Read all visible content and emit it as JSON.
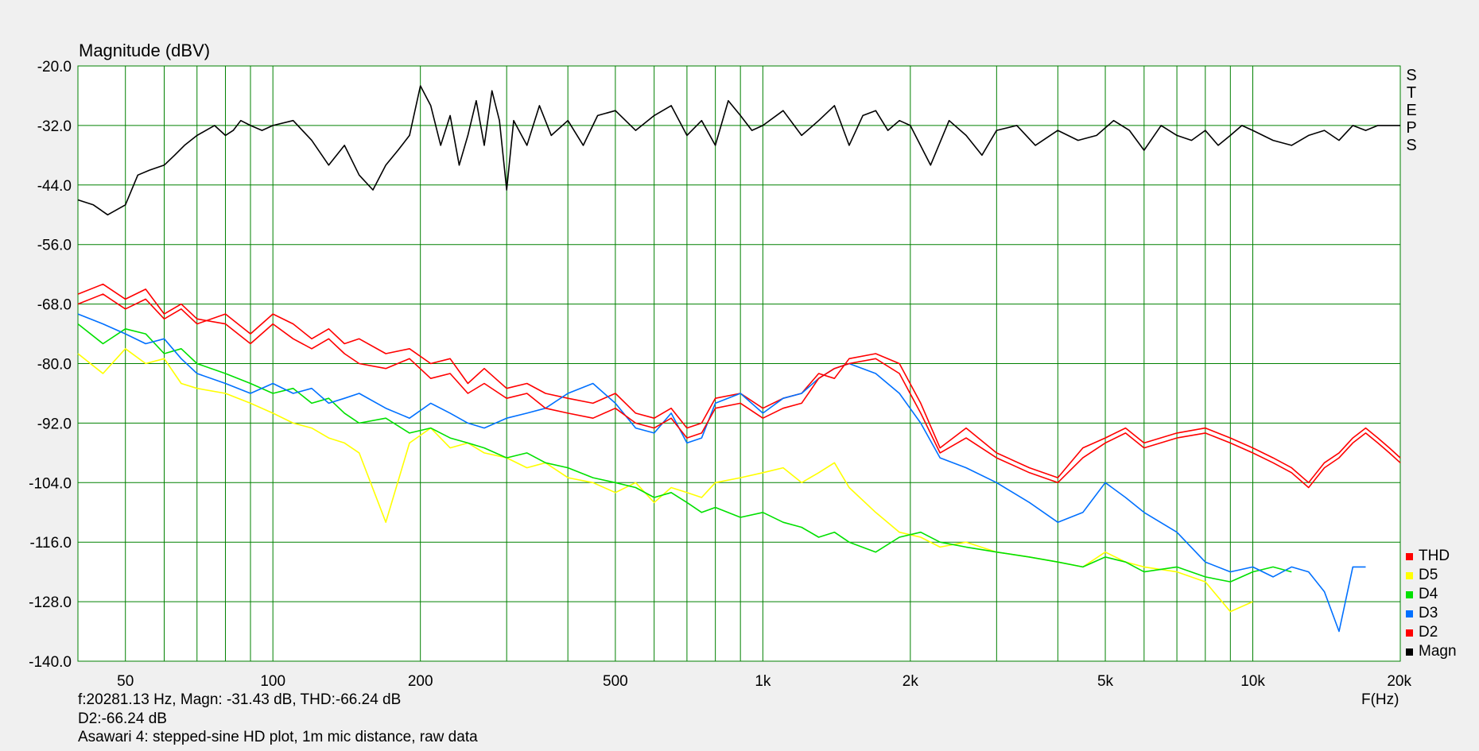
{
  "chart_data": {
    "type": "line",
    "ylabel": "Magnitude (dBV)",
    "xlabel": "F(Hz)",
    "xscale": "log",
    "xlim": [
      40,
      20000
    ],
    "ylim": [
      -140,
      -20
    ],
    "y_ticks": [
      -20.0,
      -32.0,
      -44.0,
      -56.0,
      -68.0,
      -80.0,
      -92.0,
      -104.0,
      -116.0,
      -128.0,
      -140.0
    ],
    "y_tick_labels": [
      "-20.0",
      "-32.0",
      "-44.0",
      "-56.0",
      "-68.0",
      "-80.0",
      "-92.0",
      "-104.0",
      "-116.0",
      "-128.0",
      "-140.0"
    ],
    "x_ticks": [
      50,
      100,
      200,
      500,
      1000,
      2000,
      5000,
      10000,
      20000
    ],
    "x_tick_labels": [
      "50",
      "100",
      "200",
      "500",
      "1k",
      "2k",
      "5k",
      "10k",
      "20k"
    ],
    "grid": true,
    "legend_position": "bottom-right",
    "series": [
      {
        "name": "THD",
        "color": "#ff0000",
        "x": [
          40,
          45,
          50,
          55,
          60,
          65,
          70,
          80,
          90,
          100,
          110,
          120,
          130,
          140,
          150,
          170,
          190,
          210,
          230,
          250,
          270,
          300,
          330,
          360,
          400,
          450,
          500,
          550,
          600,
          650,
          700,
          750,
          800,
          900,
          1000,
          1100,
          1200,
          1300,
          1400,
          1500,
          1700,
          1900,
          2100,
          2300,
          2600,
          3000,
          3500,
          4000,
          4500,
          5000,
          5500,
          6000,
          7000,
          8000,
          9000,
          10000,
          11000,
          12000,
          13000,
          14000,
          15000,
          16000,
          17000,
          18000,
          19000,
          20000
        ],
        "y": [
          -68,
          -66,
          -69,
          -67,
          -71,
          -69,
          -72,
          -70,
          -74,
          -70,
          -72,
          -75,
          -73,
          -76,
          -75,
          -78,
          -77,
          -80,
          -79,
          -84,
          -81,
          -85,
          -84,
          -86,
          -87,
          -88,
          -86,
          -90,
          -91,
          -89,
          -93,
          -92,
          -87,
          -86,
          -89,
          -87,
          -86,
          -82,
          -83,
          -79,
          -78,
          -80,
          -88,
          -97,
          -93,
          -98,
          -101,
          -103,
          -97,
          -95,
          -93,
          -96,
          -94,
          -93,
          -95,
          -97,
          -99,
          -101,
          -104,
          -100,
          -98,
          -95,
          -93,
          -95,
          -97,
          -99
        ]
      },
      {
        "name": "D5",
        "color": "#ffff00",
        "x": [
          40,
          45,
          50,
          55,
          60,
          65,
          70,
          80,
          90,
          100,
          110,
          120,
          130,
          140,
          150,
          170,
          190,
          210,
          230,
          250,
          270,
          300,
          330,
          360,
          400,
          450,
          500,
          550,
          600,
          650,
          700,
          750,
          800,
          900,
          1000,
          1100,
          1200,
          1300,
          1400,
          1500,
          1700,
          1900,
          2100,
          2300,
          2600,
          3000,
          3500,
          4000,
          4500,
          5000,
          5500,
          6000,
          7000,
          8000,
          9000,
          10000
        ],
        "y": [
          -78,
          -82,
          -77,
          -80,
          -79,
          -84,
          -85,
          -86,
          -88,
          -90,
          -92,
          -93,
          -95,
          -96,
          -98,
          -112,
          -96,
          -93,
          -97,
          -96,
          -98,
          -99,
          -101,
          -100,
          -103,
          -104,
          -106,
          -104,
          -108,
          -105,
          -106,
          -107,
          -104,
          -103,
          -102,
          -101,
          -104,
          -102,
          -100,
          -105,
          -110,
          -114,
          -115,
          -117,
          -116,
          -118,
          -119,
          -120,
          -121,
          -118,
          -120,
          -121,
          -122,
          -124,
          -130,
          -128
        ]
      },
      {
        "name": "D4",
        "color": "#00e000",
        "x": [
          40,
          45,
          50,
          55,
          60,
          65,
          70,
          80,
          90,
          100,
          110,
          120,
          130,
          140,
          150,
          170,
          190,
          210,
          230,
          250,
          270,
          300,
          330,
          360,
          400,
          450,
          500,
          550,
          600,
          650,
          700,
          750,
          800,
          900,
          1000,
          1100,
          1200,
          1300,
          1400,
          1500,
          1700,
          1900,
          2100,
          2300,
          2600,
          3000,
          3500,
          4000,
          4500,
          5000,
          5500,
          6000,
          7000,
          8000,
          9000,
          10000,
          11000,
          12000
        ],
        "y": [
          -72,
          -76,
          -73,
          -74,
          -78,
          -77,
          -80,
          -82,
          -84,
          -86,
          -85,
          -88,
          -87,
          -90,
          -92,
          -91,
          -94,
          -93,
          -95,
          -96,
          -97,
          -99,
          -98,
          -100,
          -101,
          -103,
          -104,
          -105,
          -107,
          -106,
          -108,
          -110,
          -109,
          -111,
          -110,
          -112,
          -113,
          -115,
          -114,
          -116,
          -118,
          -115,
          -114,
          -116,
          -117,
          -118,
          -119,
          -120,
          -121,
          -119,
          -120,
          -122,
          -121,
          -123,
          -124,
          -122,
          -121,
          -122
        ]
      },
      {
        "name": "D3",
        "color": "#0070ff",
        "x": [
          40,
          45,
          50,
          55,
          60,
          65,
          70,
          80,
          90,
          100,
          110,
          120,
          130,
          140,
          150,
          170,
          190,
          210,
          230,
          250,
          270,
          300,
          330,
          360,
          400,
          450,
          500,
          550,
          600,
          650,
          700,
          750,
          800,
          900,
          1000,
          1100,
          1200,
          1300,
          1400,
          1500,
          1700,
          1900,
          2100,
          2300,
          2600,
          3000,
          3500,
          4000,
          4500,
          5000,
          5500,
          6000,
          7000,
          8000,
          9000,
          10000,
          11000,
          12000,
          13000,
          14000,
          15000,
          16000,
          17000
        ],
        "y": [
          -70,
          -72,
          -74,
          -76,
          -75,
          -79,
          -82,
          -84,
          -86,
          -84,
          -86,
          -85,
          -88,
          -87,
          -86,
          -89,
          -91,
          -88,
          -90,
          -92,
          -93,
          -91,
          -90,
          -89,
          -86,
          -84,
          -88,
          -93,
          -94,
          -90,
          -96,
          -95,
          -88,
          -86,
          -90,
          -87,
          -86,
          -83,
          -81,
          -80,
          -82,
          -86,
          -92,
          -99,
          -101,
          -104,
          -108,
          -112,
          -110,
          -104,
          -107,
          -110,
          -114,
          -120,
          -122,
          -121,
          -123,
          -121,
          -122,
          -126,
          -134,
          -121,
          -121
        ]
      },
      {
        "name": "D2",
        "color": "#ff0000",
        "x": [
          40,
          45,
          50,
          55,
          60,
          65,
          70,
          80,
          90,
          100,
          110,
          120,
          130,
          140,
          150,
          170,
          190,
          210,
          230,
          250,
          270,
          300,
          330,
          360,
          400,
          450,
          500,
          550,
          600,
          650,
          700,
          750,
          800,
          900,
          1000,
          1100,
          1200,
          1300,
          1400,
          1500,
          1700,
          1900,
          2100,
          2300,
          2600,
          3000,
          3500,
          4000,
          4500,
          5000,
          5500,
          6000,
          7000,
          8000,
          9000,
          10000,
          11000,
          12000,
          13000,
          14000,
          15000,
          16000,
          17000,
          18000,
          19000,
          20000
        ],
        "y": [
          -66,
          -64,
          -67,
          -65,
          -70,
          -68,
          -71,
          -72,
          -76,
          -72,
          -75,
          -77,
          -75,
          -78,
          -80,
          -81,
          -79,
          -83,
          -82,
          -86,
          -84,
          -87,
          -86,
          -89,
          -90,
          -91,
          -89,
          -92,
          -93,
          -91,
          -95,
          -94,
          -89,
          -88,
          -91,
          -89,
          -88,
          -83,
          -81,
          -80,
          -79,
          -82,
          -90,
          -98,
          -95,
          -99,
          -102,
          -104,
          -99,
          -96,
          -94,
          -97,
          -95,
          -94,
          -96,
          -98,
          -100,
          -102,
          -105,
          -101,
          -99,
          -96,
          -94,
          -96,
          -98,
          -100
        ]
      },
      {
        "name": "Magn",
        "color": "#000000",
        "x": [
          40,
          43,
          46,
          50,
          53,
          56,
          60,
          63,
          66,
          70,
          73,
          76,
          80,
          83,
          86,
          90,
          95,
          100,
          110,
          120,
          130,
          140,
          150,
          160,
          170,
          180,
          190,
          200,
          210,
          220,
          230,
          240,
          250,
          260,
          270,
          280,
          290,
          300,
          310,
          330,
          350,
          370,
          400,
          430,
          460,
          500,
          550,
          600,
          650,
          700,
          750,
          800,
          850,
          900,
          950,
          1000,
          1100,
          1200,
          1300,
          1400,
          1500,
          1600,
          1700,
          1800,
          1900,
          2000,
          2200,
          2400,
          2600,
          2800,
          3000,
          3300,
          3600,
          4000,
          4400,
          4800,
          5200,
          5600,
          6000,
          6500,
          7000,
          7500,
          8000,
          8500,
          9000,
          9500,
          10000,
          11000,
          12000,
          13000,
          14000,
          15000,
          16000,
          17000,
          18000,
          19000,
          20000
        ],
        "y": [
          -47,
          -48,
          -50,
          -48,
          -42,
          -41,
          -40,
          -38,
          -36,
          -34,
          -33,
          -32,
          -34,
          -33,
          -31,
          -32,
          -33,
          -32,
          -31,
          -35,
          -40,
          -36,
          -42,
          -45,
          -40,
          -37,
          -34,
          -24,
          -28,
          -36,
          -30,
          -40,
          -34,
          -27,
          -36,
          -25,
          -31,
          -45,
          -31,
          -36,
          -28,
          -34,
          -31,
          -36,
          -30,
          -29,
          -33,
          -30,
          -28,
          -34,
          -31,
          -36,
          -27,
          -30,
          -33,
          -32,
          -29,
          -34,
          -31,
          -28,
          -36,
          -30,
          -29,
          -33,
          -31,
          -32,
          -40,
          -31,
          -34,
          -38,
          -33,
          -32,
          -36,
          -33,
          -35,
          -34,
          -31,
          -33,
          -37,
          -32,
          -34,
          -35,
          -33,
          -36,
          -34,
          -32,
          -33,
          -35,
          -36,
          -34,
          -33,
          -35,
          -32,
          -33,
          -32,
          -32,
          -32
        ]
      }
    ]
  },
  "title_ylabel": "Magnitude (dBV)",
  "side_label": [
    "S",
    "T",
    "E",
    "P",
    "S"
  ],
  "legend": [
    {
      "label": "THD",
      "color": "#ff0000"
    },
    {
      "label": "D5",
      "color": "#ffff00"
    },
    {
      "label": "D4",
      "color": "#00e000"
    },
    {
      "label": "D3",
      "color": "#0070ff"
    },
    {
      "label": "D2",
      "color": "#ff0000"
    },
    {
      "label": "Magn",
      "color": "#000000"
    }
  ],
  "footer": {
    "line1": "f:20281.13 Hz, Magn: -31.43 dB, THD:-66.24  dB",
    "line2": "D2:-66.24 dB",
    "line3": "Asawari 4: stepped-sine HD plot, 1m mic distance, raw data"
  },
  "xunit": "F(Hz)",
  "colors": {
    "grid": "#008000",
    "plot_bg": "#ffffff",
    "page_bg": "#f0f0f0"
  }
}
